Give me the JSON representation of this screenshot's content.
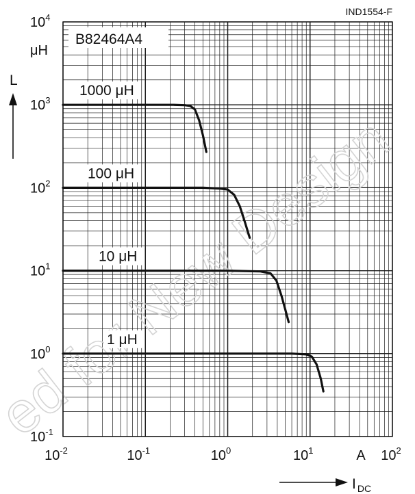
{
  "chart_data": {
    "type": "line",
    "figure_id": "IND1554-F",
    "part_number": "B82464A4",
    "x_scale": "log",
    "y_scale": "log",
    "xlim": [
      0.01,
      100
    ],
    "ylim": [
      0.1,
      10000
    ],
    "x_ticks": [
      {
        "base": "10",
        "exp": "-2",
        "value": 0.01
      },
      {
        "base": "10",
        "exp": "-1",
        "value": 0.1
      },
      {
        "base": "10",
        "exp": "0",
        "value": 1
      },
      {
        "base": "10",
        "exp": "1",
        "value": 10
      },
      {
        "base": "10",
        "exp": "2",
        "value": 100
      }
    ],
    "y_ticks": [
      {
        "base": "10",
        "exp": "-1",
        "value": 0.1
      },
      {
        "base": "10",
        "exp": "0",
        "value": 1
      },
      {
        "base": "10",
        "exp": "1",
        "value": 10
      },
      {
        "base": "10",
        "exp": "2",
        "value": 100
      },
      {
        "base": "10",
        "exp": "3",
        "value": 1000
      },
      {
        "base": "10",
        "exp": "4",
        "value": 10000
      }
    ],
    "x_unit": "A",
    "y_unit": "μH",
    "xlabel": "I",
    "xlabel_sub": "DC",
    "ylabel": "L",
    "grid": true,
    "series": [
      {
        "name": "1000 μH",
        "x": [
          0.01,
          0.1,
          0.22,
          0.3,
          0.35,
          0.4,
          0.45,
          0.5,
          0.55
        ],
        "y": [
          1000,
          1000,
          1000,
          990,
          970,
          880,
          650,
          430,
          270
        ]
      },
      {
        "name": "100 μH",
        "x": [
          0.01,
          0.1,
          0.5,
          0.8,
          1.0,
          1.2,
          1.4,
          1.6,
          1.85
        ],
        "y": [
          100,
          100,
          100,
          98,
          95,
          82,
          60,
          40,
          25
        ]
      },
      {
        "name": "10 μH",
        "x": [
          0.01,
          0.1,
          1,
          2.5,
          3.3,
          3.9,
          4.5,
          5.0,
          5.5
        ],
        "y": [
          10,
          10,
          10,
          9.8,
          9.3,
          7.6,
          5.0,
          3.4,
          2.4
        ]
      },
      {
        "name": "1 μH",
        "x": [
          0.01,
          0.1,
          1,
          6,
          9,
          10.5,
          12,
          13.5,
          14.5
        ],
        "y": [
          1,
          1,
          1,
          1,
          0.98,
          0.92,
          0.74,
          0.5,
          0.35
        ]
      }
    ]
  },
  "watermark": "ed for New Design",
  "colors": {
    "curve": "#111111",
    "grid": "#1a1a1a",
    "watermark": "#d4d4d4"
  }
}
